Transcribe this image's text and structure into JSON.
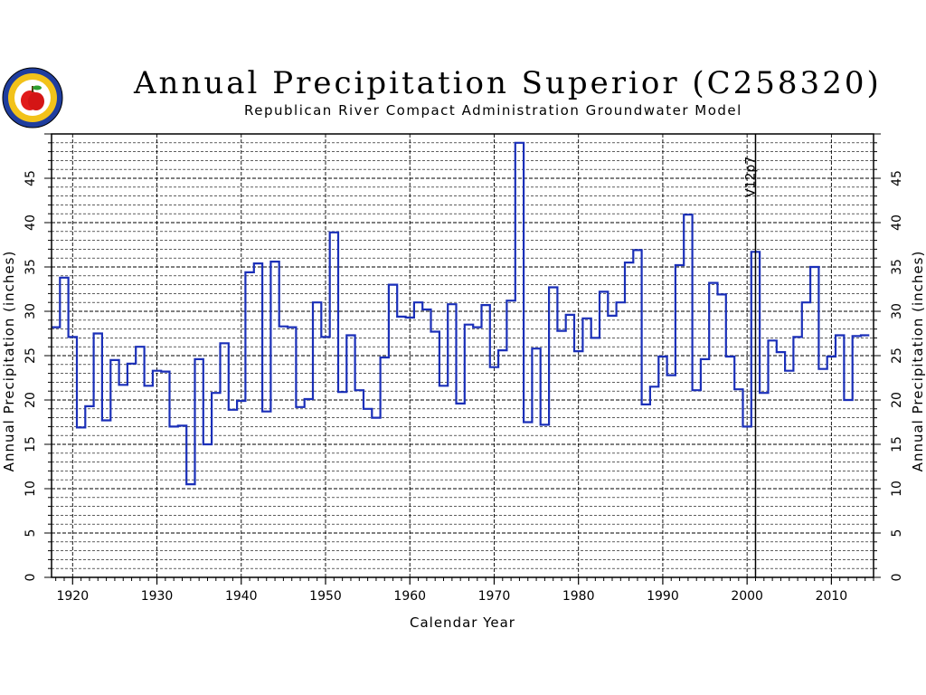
{
  "chart_data": {
    "type": "line",
    "style": "step",
    "title": "Annual Precipitation Superior (C258320)",
    "subtitle": "Republican River Compact Administration Groundwater Model",
    "xlabel": "Calendar Year",
    "ylabel": "Annual Precipitation (inches)",
    "xlim": [
      1917.5,
      2015
    ],
    "ylim": [
      0,
      50
    ],
    "xticks": [
      1920,
      1930,
      1940,
      1950,
      1960,
      1970,
      1980,
      1990,
      2000,
      2010
    ],
    "yticks": [
      0,
      5,
      10,
      15,
      20,
      25,
      30,
      35,
      40,
      45
    ],
    "grid": true,
    "annotation": {
      "label": "V12p7",
      "x": 2001
    },
    "colors": {
      "series": "#1a2fb8",
      "grid": "#000000",
      "annotation_line": "#000000"
    },
    "series": [
      {
        "x": [
          1918,
          1919,
          1920,
          1921,
          1922,
          1923,
          1924,
          1925,
          1926,
          1927,
          1928,
          1929,
          1930,
          1931,
          1932,
          1933,
          1934,
          1935,
          1936,
          1937,
          1938,
          1939,
          1940,
          1941,
          1942,
          1943,
          1944,
          1945,
          1946,
          1947,
          1948,
          1949,
          1950,
          1951,
          1952,
          1953,
          1954,
          1955,
          1956,
          1957,
          1958,
          1959,
          1960,
          1961,
          1962,
          1963,
          1964,
          1965,
          1966,
          1967,
          1968,
          1969,
          1970,
          1971,
          1972,
          1973,
          1974,
          1975,
          1976,
          1977,
          1978,
          1979,
          1980,
          1981,
          1982,
          1983,
          1984,
          1985,
          1986,
          1987,
          1988,
          1989,
          1990,
          1991,
          1992,
          1993,
          1994,
          1995,
          1996,
          1997,
          1998,
          1999,
          2000,
          2001,
          2002,
          2003,
          2004,
          2005,
          2006,
          2007,
          2008,
          2009,
          2010,
          2011,
          2012,
          2013,
          2014
        ],
        "values": [
          28.2,
          33.8,
          27.1,
          16.9,
          19.3,
          27.5,
          17.7,
          24.5,
          21.7,
          24.1,
          26.0,
          21.6,
          23.3,
          23.2,
          17.0,
          17.1,
          10.5,
          24.6,
          15.0,
          20.8,
          26.4,
          18.9,
          19.9,
          34.4,
          35.4,
          18.7,
          35.6,
          28.3,
          28.2,
          19.2,
          20.1,
          31.0,
          27.1,
          38.9,
          20.9,
          27.3,
          21.1,
          19.0,
          18.0,
          24.8,
          33.0,
          29.4,
          29.3,
          31.0,
          30.2,
          27.7,
          21.6,
          30.8,
          19.6,
          28.5,
          28.2,
          30.7,
          23.7,
          25.6,
          31.2,
          49.0,
          17.5,
          25.8,
          17.2,
          32.7,
          27.8,
          29.6,
          25.5,
          29.2,
          27.0,
          32.2,
          29.5,
          31.0,
          35.5,
          36.9,
          19.5,
          21.5,
          24.9,
          22.8,
          35.2,
          40.9,
          21.1,
          24.6,
          33.2,
          31.9,
          24.9,
          21.2,
          17.0,
          36.7,
          20.8,
          26.7,
          25.4,
          23.3,
          27.1,
          31.0,
          35.0,
          23.5,
          24.9,
          27.3,
          20.0,
          27.2,
          27.3
        ]
      }
    ]
  }
}
